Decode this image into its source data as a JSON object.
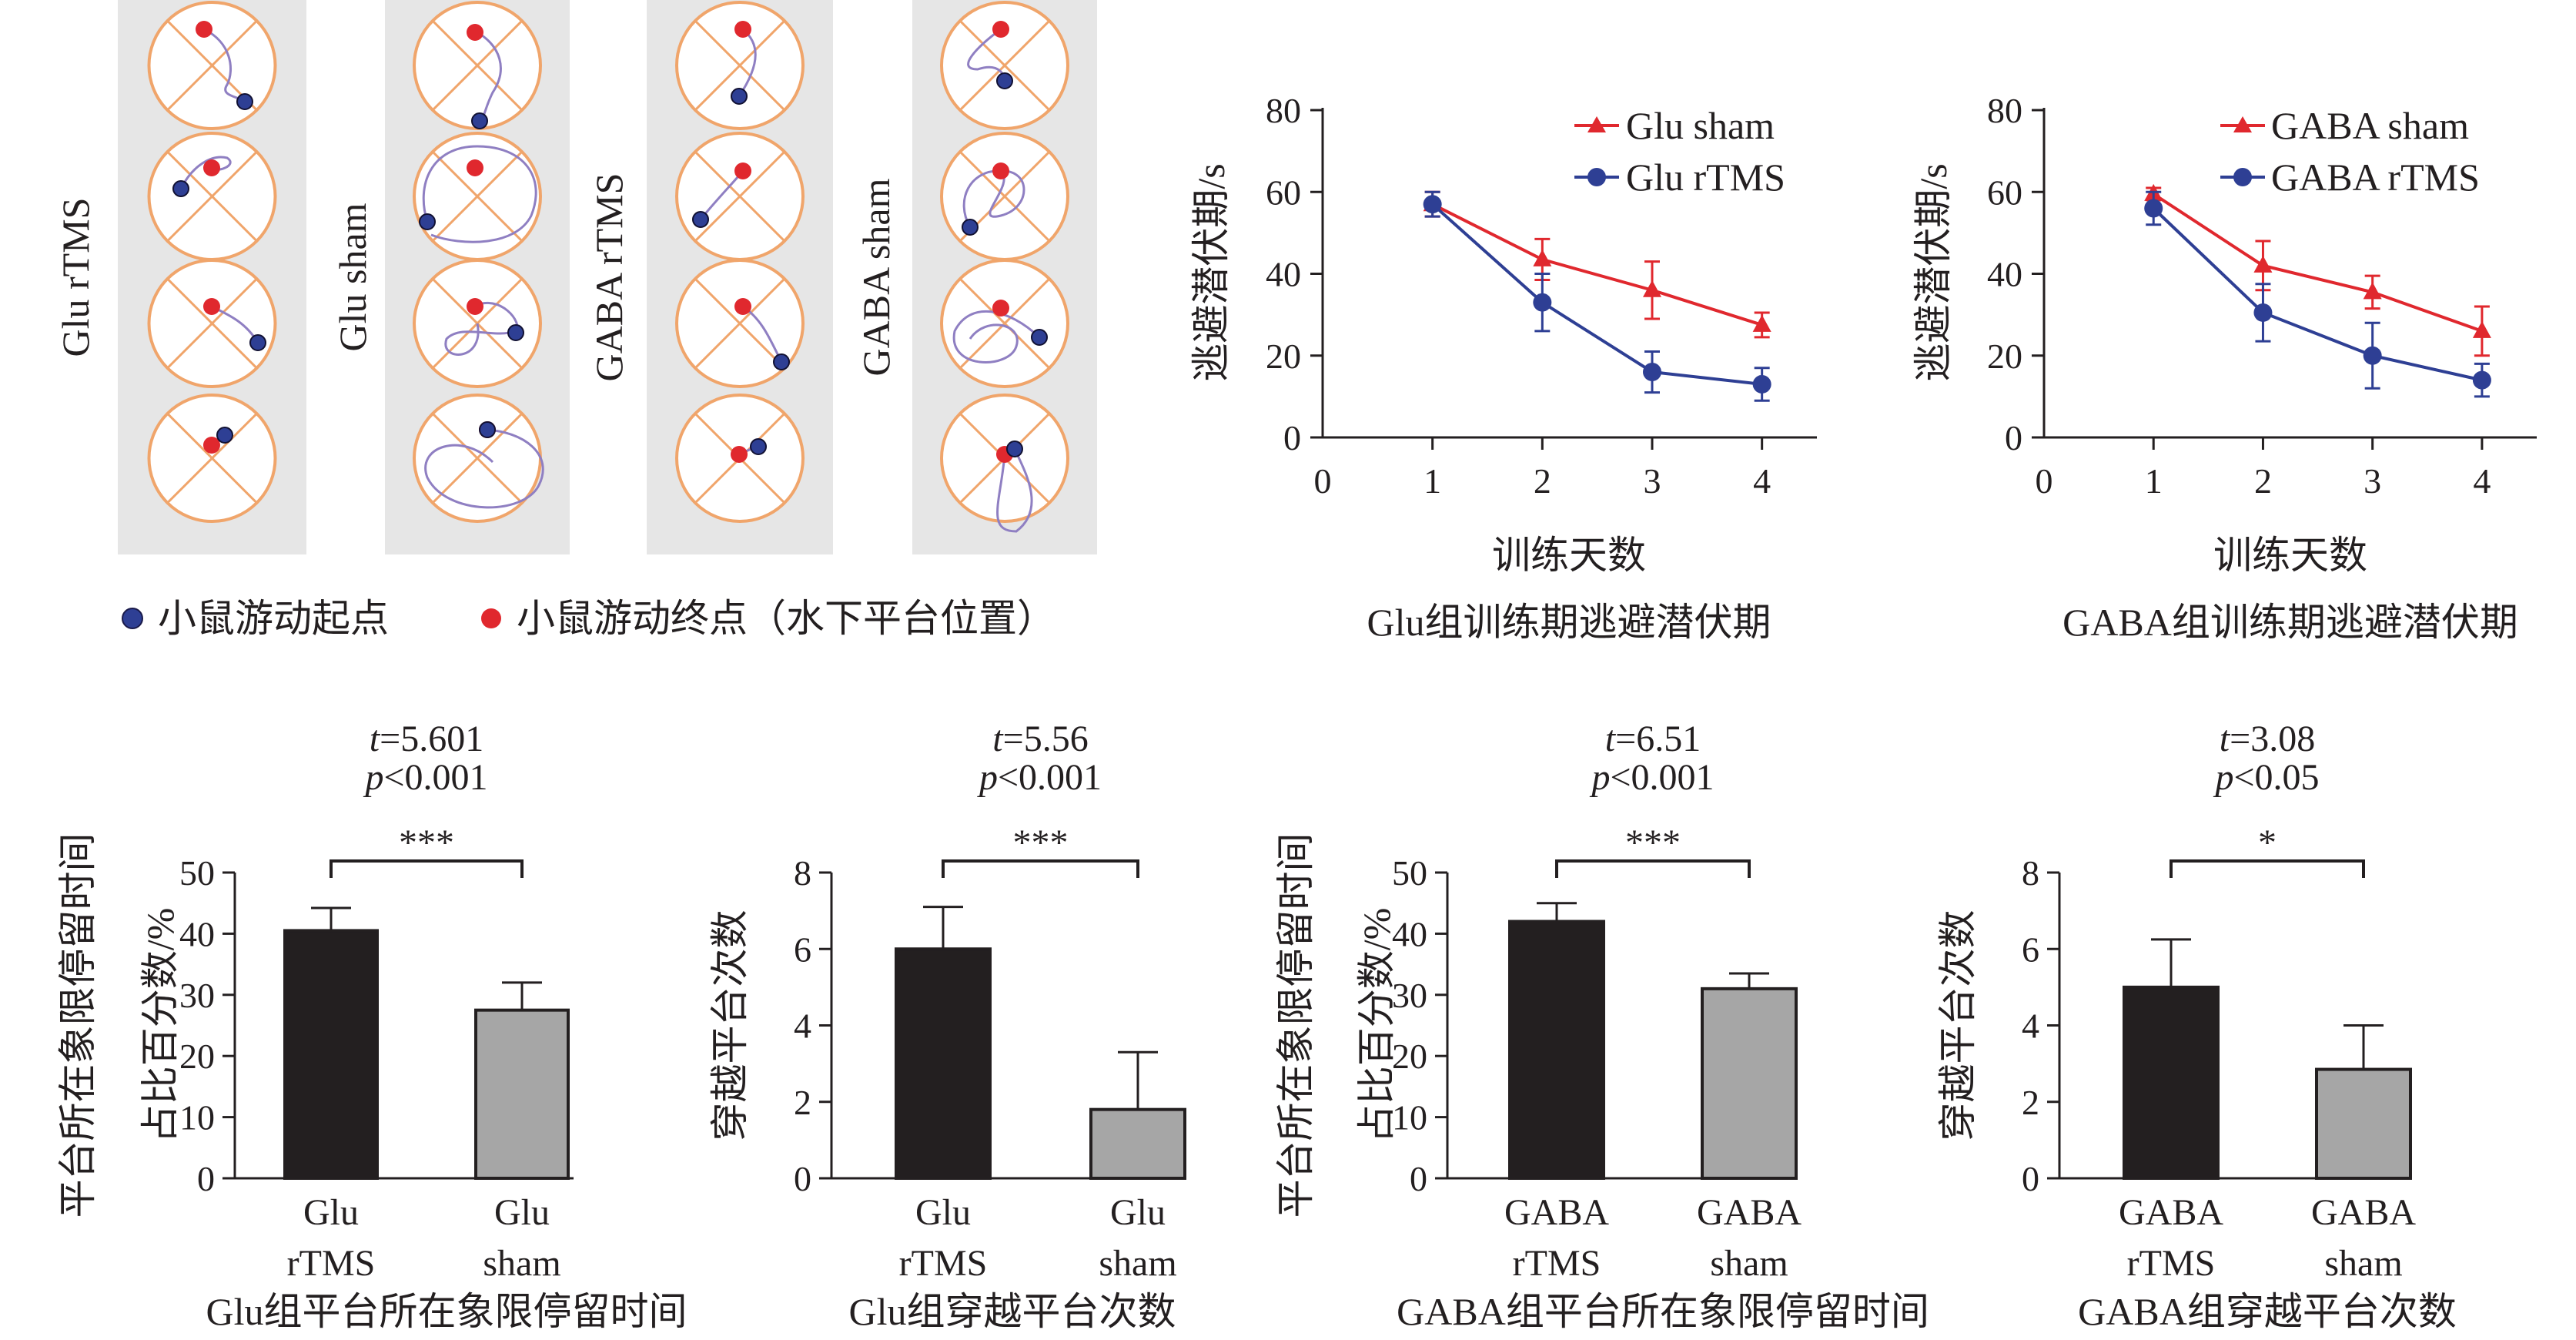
{
  "colors": {
    "rtms_line": "#2e3f94",
    "sham_line": "#e0282e",
    "bar_rtms": "#231f20",
    "bar_sham": "#a6a6a6",
    "pool_outline": "#f0a56b",
    "panel_bg": "#e6e6e6",
    "path_color": "#8f7fc2"
  },
  "swim_paths": {
    "groups": [
      "Glu rTMS",
      "Glu sham",
      "GABA rTMS",
      "GABA sham"
    ],
    "legend": {
      "start_label": "小鼠游动起点",
      "end_label": "小鼠游动终点（水下平台位置）",
      "start_icon": "blue-dot-icon",
      "end_icon": "red-dot-icon"
    }
  },
  "chart_data": [
    {
      "type": "line",
      "title": "Glu组训练期逃避潜伏期",
      "xlabel": "训练天数",
      "ylabel": "逃避潜伏期/s",
      "x": [
        1,
        2,
        3,
        4
      ],
      "xticks": [
        0,
        1,
        2,
        3,
        4
      ],
      "xlim": [
        0,
        4.5
      ],
      "ylim": [
        0,
        80
      ],
      "yticks": [
        0,
        20,
        40,
        60,
        80
      ],
      "legend_position": "top-right",
      "series": [
        {
          "name": "Glu sham",
          "color": "#e0282e",
          "marker": "triangle",
          "values": [
            57,
            43.5,
            36,
            27.5
          ],
          "errors": [
            3,
            5,
            7,
            3
          ]
        },
        {
          "name": "Glu rTMS",
          "color": "#2e3f94",
          "marker": "circle",
          "values": [
            57,
            33,
            16,
            13
          ],
          "errors": [
            3,
            7,
            5,
            4
          ]
        }
      ]
    },
    {
      "type": "line",
      "title": "GABA组训练期逃避潜伏期",
      "xlabel": "训练天数",
      "ylabel": "逃避潜伏期/s",
      "x": [
        1,
        2,
        3,
        4
      ],
      "xticks": [
        0,
        1,
        2,
        3,
        4
      ],
      "xlim": [
        0,
        4.5
      ],
      "ylim": [
        0,
        80
      ],
      "yticks": [
        0,
        20,
        40,
        60,
        80
      ],
      "legend_position": "top-right",
      "series": [
        {
          "name": "GABA sham",
          "color": "#e0282e",
          "marker": "triangle",
          "values": [
            59.5,
            42,
            35.5,
            26
          ],
          "errors": [
            1.5,
            6,
            4,
            6
          ]
        },
        {
          "name": "GABA rTMS",
          "color": "#2e3f94",
          "marker": "circle",
          "values": [
            56,
            30.5,
            20,
            14
          ],
          "errors": [
            4,
            7,
            8,
            4
          ]
        }
      ]
    },
    {
      "type": "bar",
      "title": "Glu组平台所在象限停留时间",
      "ylabel": [
        "平台所在象限停留时间",
        "占比百分数/%"
      ],
      "categories": [
        [
          "Glu",
          "rTMS"
        ],
        [
          "Glu",
          "sham"
        ]
      ],
      "values": [
        40.5,
        27.5
      ],
      "errors": [
        3.7,
        4.5
      ],
      "ylim": [
        0,
        50
      ],
      "yticks": [
        0,
        10,
        20,
        30,
        40,
        50
      ],
      "stats": {
        "t": "t",
        "t_value": "=5.601",
        "p": "p",
        "p_value": "<0.001",
        "sig": "***"
      }
    },
    {
      "type": "bar",
      "title": "Glu组穿越平台次数",
      "ylabel": [
        "穿越平台次数"
      ],
      "categories": [
        [
          "Glu",
          "rTMS"
        ],
        [
          "Glu",
          "sham"
        ]
      ],
      "values": [
        6.0,
        1.8
      ],
      "errors": [
        1.1,
        1.5
      ],
      "ylim": [
        0,
        8
      ],
      "yticks": [
        0,
        2,
        4,
        6,
        8
      ],
      "stats": {
        "t": "t",
        "t_value": "=5.56",
        "p": "p",
        "p_value": "<0.001",
        "sig": "***"
      }
    },
    {
      "type": "bar",
      "title": "GABA组平台所在象限停留时间",
      "ylabel": [
        "平台所在象限停留时间",
        "占比百分数/%"
      ],
      "categories": [
        [
          "GABA",
          "rTMS"
        ],
        [
          "GABA",
          "sham"
        ]
      ],
      "values": [
        42,
        31
      ],
      "errors": [
        3,
        2.5
      ],
      "ylim": [
        0,
        50
      ],
      "yticks": [
        0,
        10,
        20,
        30,
        40,
        50
      ],
      "stats": {
        "t": "t",
        "t_value": "=6.51",
        "p": "p",
        "p_value": "<0.001",
        "sig": "***"
      }
    },
    {
      "type": "bar",
      "title": "GABA组穿越平台次数",
      "ylabel": [
        "穿越平台次数"
      ],
      "categories": [
        [
          "GABA",
          "rTMS"
        ],
        [
          "GABA",
          "sham"
        ]
      ],
      "values": [
        5.0,
        2.85
      ],
      "errors": [
        1.25,
        1.15
      ],
      "ylim": [
        0,
        8
      ],
      "yticks": [
        0,
        2,
        4,
        6,
        8
      ],
      "stats": {
        "t": "t",
        "t_value": "=3.08",
        "p": "p",
        "p_value": "<0.05",
        "sig": "*"
      }
    }
  ]
}
